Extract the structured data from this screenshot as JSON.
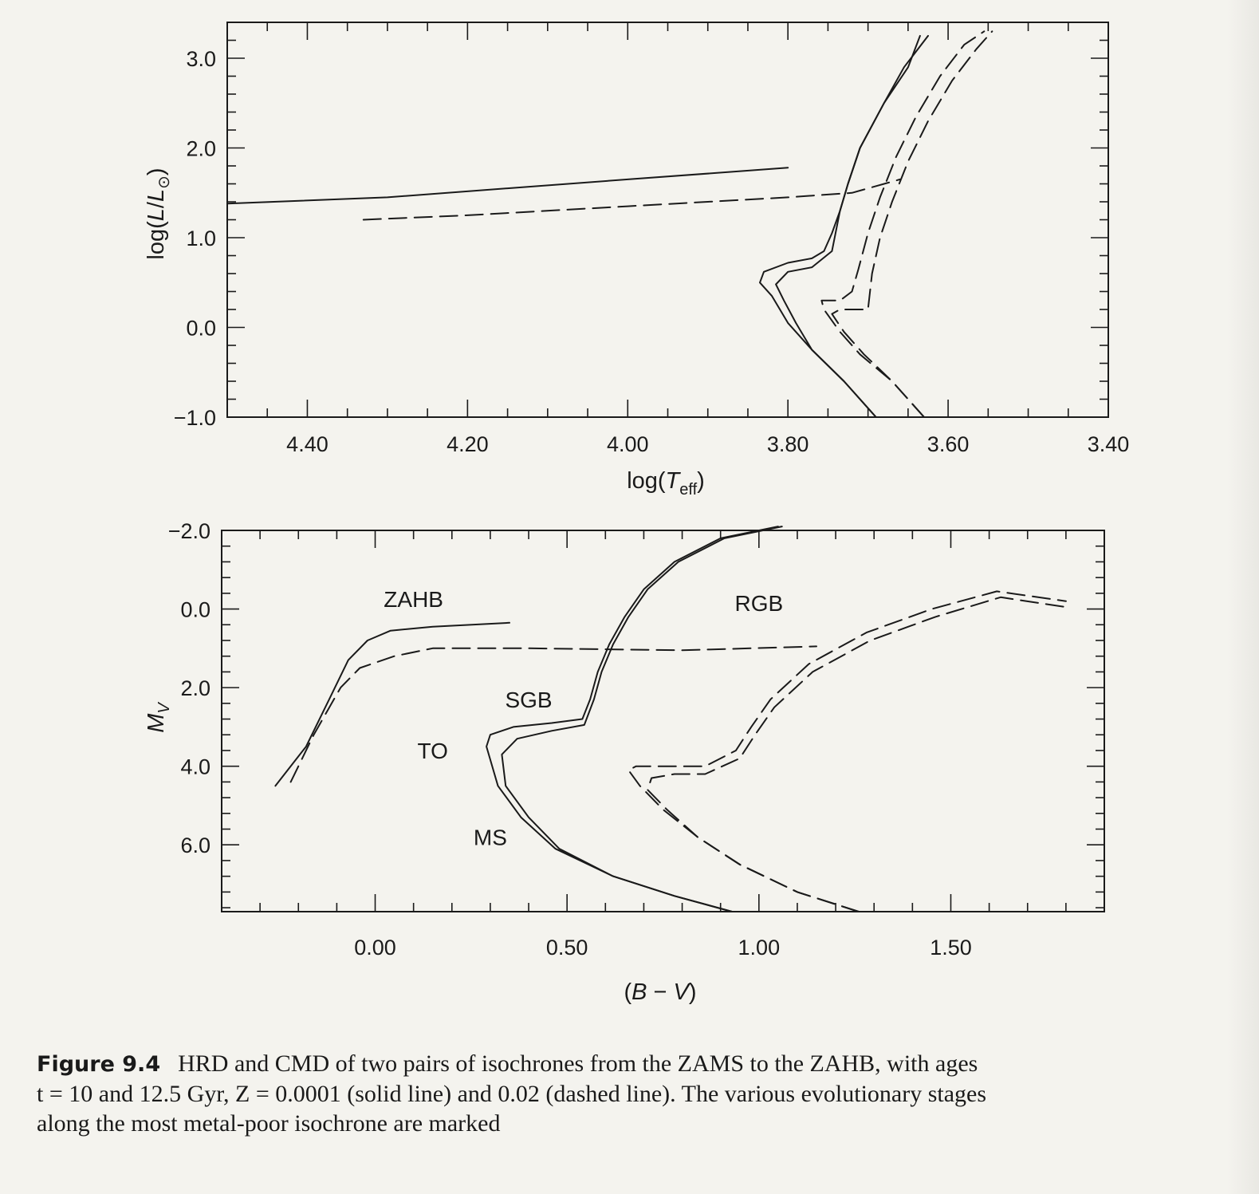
{
  "chart_data": [
    {
      "type": "line",
      "title": "",
      "xlabel": "log(T_eff)",
      "ylabel": "log(L/L_⊙)",
      "xlim": [
        4.5,
        3.4
      ],
      "ylim": [
        -1.0,
        3.4
      ],
      "x_ticks": [
        "4.40",
        "4.20",
        "4.00",
        "3.80",
        "3.60",
        "3.40"
      ],
      "y_ticks": [
        "−1.0",
        "0.0",
        "1.0",
        "2.0",
        "3.0"
      ],
      "x_tick_values": [
        4.4,
        4.2,
        4.0,
        3.8,
        3.6,
        3.4
      ],
      "y_tick_values": [
        -1.0,
        0.0,
        1.0,
        2.0,
        3.0
      ],
      "grid": false,
      "series": [
        {
          "style": "solid",
          "x": [
            3.69,
            3.73,
            3.77,
            3.8,
            3.82,
            3.835,
            3.83,
            3.8,
            3.77,
            3.755,
            3.745,
            3.735,
            3.725,
            3.71,
            3.68,
            3.65,
            3.635
          ],
          "y": [
            -1.0,
            -0.6,
            -0.25,
            0.05,
            0.35,
            0.5,
            0.62,
            0.72,
            0.77,
            0.85,
            1.05,
            1.3,
            1.6,
            2.0,
            2.5,
            2.9,
            3.25
          ]
        },
        {
          "style": "solid",
          "x": [
            3.69,
            3.73,
            3.77,
            3.79,
            3.805,
            3.815,
            3.8,
            3.77,
            3.745,
            3.735,
            3.725,
            3.71,
            3.68,
            3.655,
            3.625
          ],
          "y": [
            -1.0,
            -0.6,
            -0.25,
            0.05,
            0.3,
            0.48,
            0.62,
            0.67,
            0.85,
            1.3,
            1.6,
            2.0,
            2.5,
            2.9,
            3.25
          ]
        },
        {
          "style": "dashed",
          "x": [
            3.63,
            3.67,
            3.71,
            3.735,
            3.755,
            3.758,
            3.735,
            3.72,
            3.712,
            3.7,
            3.685,
            3.665,
            3.64,
            3.61,
            3.58,
            3.555
          ],
          "y": [
            -1.0,
            -0.6,
            -0.3,
            -0.05,
            0.2,
            0.3,
            0.3,
            0.4,
            0.65,
            1.05,
            1.45,
            1.9,
            2.35,
            2.8,
            3.15,
            3.3
          ]
        },
        {
          "style": "dashed",
          "x": [
            3.63,
            3.67,
            3.705,
            3.73,
            3.745,
            3.735,
            3.7,
            3.695,
            3.685,
            3.67,
            3.65,
            3.625,
            3.595,
            3.565,
            3.545
          ],
          "y": [
            -1.0,
            -0.6,
            -0.3,
            -0.05,
            0.15,
            0.2,
            0.2,
            0.6,
            1.0,
            1.4,
            1.85,
            2.3,
            2.75,
            3.1,
            3.3
          ]
        },
        {
          "style": "solid",
          "x": [
            4.5,
            4.3,
            4.15,
            4.0,
            3.8
          ],
          "y": [
            1.38,
            1.45,
            1.55,
            1.65,
            1.78
          ]
        },
        {
          "style": "dashed",
          "x": [
            4.33,
            4.2,
            4.0,
            3.8,
            3.72,
            3.66
          ],
          "y": [
            1.2,
            1.25,
            1.35,
            1.45,
            1.5,
            1.65
          ]
        }
      ]
    },
    {
      "type": "line",
      "title": "",
      "xlabel": "(B − V)",
      "ylabel": "M_V",
      "xlim": [
        -0.4,
        1.9
      ],
      "ylim": [
        7.7,
        -2.0
      ],
      "x_ticks": [
        "0.00",
        "0.50",
        "1.00",
        "1.50"
      ],
      "y_ticks": [
        "−2.0",
        "0.0",
        "2.0",
        "4.0",
        "6.0"
      ],
      "x_tick_values": [
        0.0,
        0.5,
        1.0,
        1.5
      ],
      "y_tick_values": [
        -2.0,
        0.0,
        2.0,
        4.0,
        6.0
      ],
      "grid": false,
      "series": [
        {
          "style": "solid",
          "x": [
            0.93,
            0.78,
            0.62,
            0.47,
            0.38,
            0.32,
            0.29,
            0.3,
            0.36,
            0.46,
            0.54,
            0.56,
            0.58,
            0.61,
            0.65,
            0.7,
            0.78,
            0.9,
            1.05
          ],
          "y": [
            7.7,
            7.3,
            6.8,
            6.1,
            5.3,
            4.5,
            3.5,
            3.2,
            3.0,
            2.9,
            2.8,
            2.3,
            1.6,
            0.9,
            0.2,
            -0.5,
            -1.2,
            -1.8,
            -2.1
          ]
        },
        {
          "style": "solid",
          "x": [
            0.93,
            0.78,
            0.62,
            0.48,
            0.4,
            0.34,
            0.33,
            0.37,
            0.46,
            0.545,
            0.57,
            0.59,
            0.62,
            0.66,
            0.71,
            0.79,
            0.91,
            1.06
          ],
          "y": [
            7.7,
            7.3,
            6.8,
            6.1,
            5.3,
            4.5,
            3.7,
            3.3,
            3.1,
            2.95,
            2.3,
            1.6,
            0.9,
            0.2,
            -0.5,
            -1.2,
            -1.8,
            -2.1
          ]
        },
        {
          "style": "dashed",
          "x": [
            1.26,
            1.1,
            0.95,
            0.84,
            0.75,
            0.69,
            0.66,
            0.68,
            0.76,
            0.86,
            0.94,
            0.98,
            1.03,
            1.13,
            1.28,
            1.45,
            1.62,
            1.8
          ],
          "y": [
            7.7,
            7.2,
            6.5,
            5.8,
            5.1,
            4.5,
            4.1,
            4.0,
            4.0,
            4.0,
            3.6,
            3.0,
            2.3,
            1.4,
            0.6,
            0.0,
            -0.45,
            -0.2
          ]
        },
        {
          "style": "dashed",
          "x": [
            1.26,
            1.1,
            0.95,
            0.84,
            0.76,
            0.71,
            0.72,
            0.78,
            0.86,
            0.95,
            0.99,
            1.04,
            1.14,
            1.29,
            1.46,
            1.63,
            1.8
          ],
          "y": [
            7.7,
            7.2,
            6.5,
            5.8,
            5.1,
            4.6,
            4.3,
            4.2,
            4.2,
            3.8,
            3.2,
            2.5,
            1.6,
            0.8,
            0.2,
            -0.3,
            -0.05
          ]
        },
        {
          "style": "solid",
          "x": [
            -0.26,
            -0.18,
            -0.12,
            -0.07,
            -0.02,
            0.04,
            0.15,
            0.35
          ],
          "y": [
            4.5,
            3.5,
            2.3,
            1.3,
            0.8,
            0.55,
            0.45,
            0.35
          ]
        },
        {
          "style": "dashed",
          "x": [
            -0.22,
            -0.16,
            -0.09,
            -0.04,
            0.05,
            0.15,
            0.4,
            0.8,
            1.15
          ],
          "y": [
            4.4,
            3.2,
            2.0,
            1.5,
            1.2,
            1.0,
            1.0,
            1.05,
            0.95
          ]
        }
      ],
      "annotations": [
        {
          "text": "ZAHB",
          "x": 0.1,
          "y": -0.25
        },
        {
          "text": "RGB",
          "x": 1.0,
          "y": -0.15
        },
        {
          "text": "SGB",
          "x": 0.4,
          "y": 2.3
        },
        {
          "text": "TO",
          "x": 0.15,
          "y": 3.6
        },
        {
          "text": "MS",
          "x": 0.3,
          "y": 5.8
        }
      ]
    }
  ],
  "caption": {
    "number": "Figure 9.4",
    "line1": "HRD and CMD of two pairs of isochrones from the ZAMS to the ZAHB, with ages",
    "line2": "t = 10 and 12.5 Gyr, Z = 0.0001 (solid line) and 0.02 (dashed line). The various evolutionary stages",
    "line3": "along the most metal-poor isochrone are marked"
  }
}
